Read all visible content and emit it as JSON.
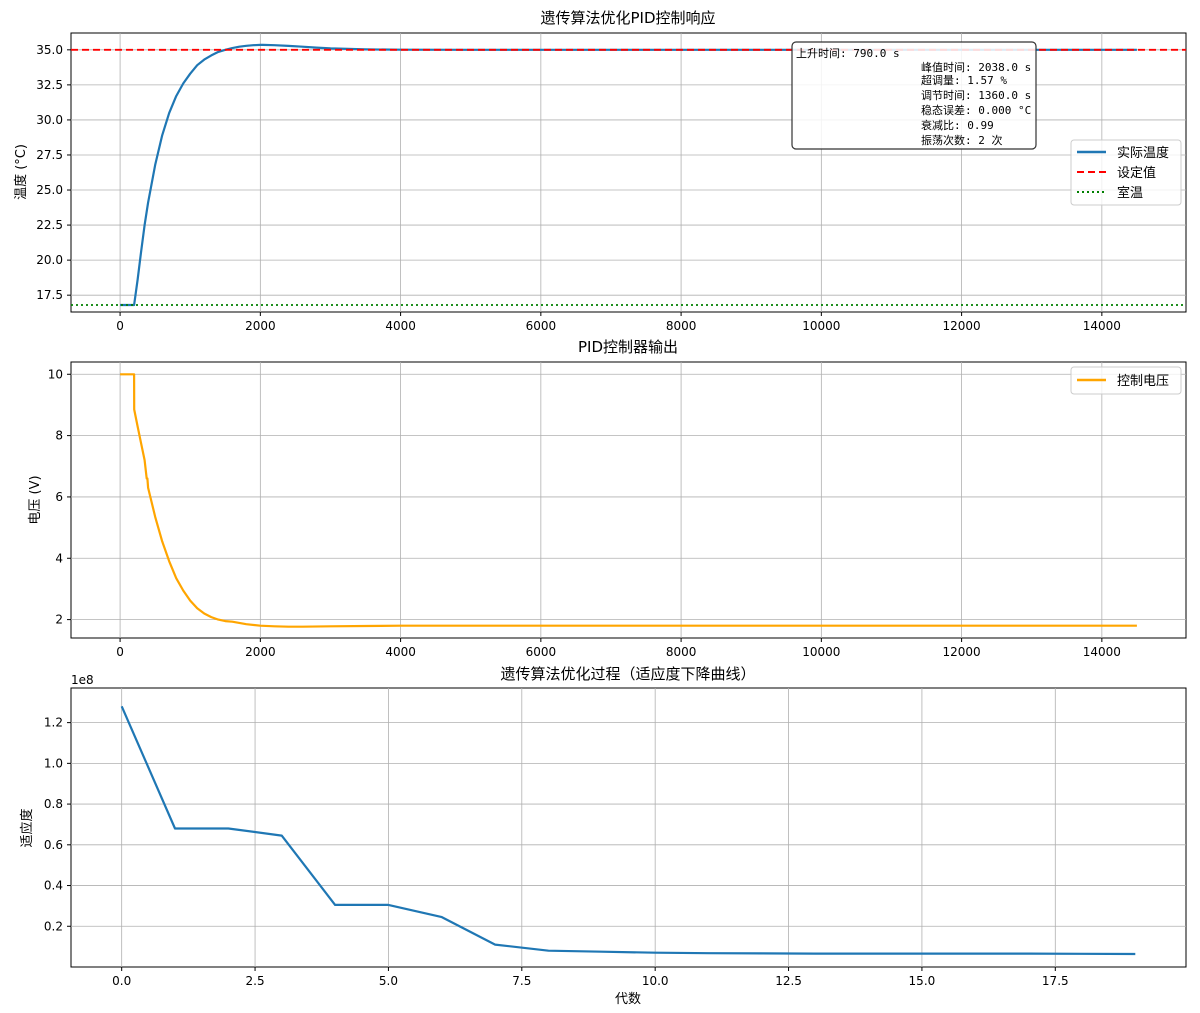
{
  "chart_data": [
    {
      "type": "line",
      "title": "遗传算法优化PID控制响应",
      "xlabel": "",
      "ylabel": "温度 (°C)",
      "xlim": [
        -700,
        15200
      ],
      "ylim": [
        16.3,
        36.2
      ],
      "xticks": [
        0,
        2000,
        4000,
        6000,
        8000,
        10000,
        12000,
        14000
      ],
      "yticks": [
        17.5,
        20.0,
        22.5,
        25.0,
        27.5,
        30.0,
        32.5,
        35.0
      ],
      "grid": true,
      "legend_position": "center-right",
      "series": [
        {
          "name": "实际温度",
          "style": "solid",
          "color": "#1f77b4",
          "x": [
            0,
            100,
            200,
            250,
            300,
            350,
            400,
            500,
            600,
            700,
            800,
            900,
            1000,
            1100,
            1200,
            1300,
            1400,
            1500,
            1600,
            1700,
            1800,
            1900,
            2000,
            2038,
            2200,
            2400,
            2600,
            2800,
            3000,
            3500,
            4000,
            5000,
            6000,
            8000,
            10000,
            12000,
            14500
          ],
          "y": [
            16.8,
            16.8,
            16.8,
            18.6,
            20.6,
            22.5,
            24.1,
            26.8,
            28.9,
            30.5,
            31.7,
            32.6,
            33.3,
            33.9,
            34.3,
            34.6,
            34.85,
            35.0,
            35.12,
            35.22,
            35.29,
            35.33,
            35.35,
            35.35,
            35.33,
            35.28,
            35.22,
            35.16,
            35.1,
            35.03,
            35.01,
            35.0,
            35.0,
            35.0,
            35.0,
            35.0,
            35.0
          ]
        },
        {
          "name": "设定值",
          "style": "dashed",
          "color": "#ff0000",
          "x": [
            -700,
            15200
          ],
          "y": [
            35.0,
            35.0
          ]
        },
        {
          "name": "室温",
          "style": "dotted",
          "color": "#008000",
          "x": [
            -700,
            15200
          ],
          "y": [
            16.8,
            16.8
          ]
        }
      ],
      "stats_lines": [
        "上升时间: 790.0 s",
        "峰值时间: 2038.0 s",
        "超调量: 1.57 %",
        "调节时间: 1360.0 s",
        "稳态误差: 0.000 °C",
        "衰减比: 0.99",
        "振荡次数: 2 次"
      ]
    },
    {
      "type": "line",
      "title": "PID控制器输出",
      "xlabel": "",
      "ylabel": "电压 (V)",
      "xlim": [
        -700,
        15200
      ],
      "ylim": [
        1.4,
        10.4
      ],
      "xticks": [
        0,
        2000,
        4000,
        6000,
        8000,
        10000,
        12000,
        14000
      ],
      "yticks": [
        2,
        4,
        6,
        8,
        10
      ],
      "grid": true,
      "legend_position": "top-right",
      "series": [
        {
          "name": "控制电压",
          "style": "solid",
          "color": "#ffa500",
          "x": [
            0,
            200,
            201,
            250,
            300,
            350,
            380,
            390,
            400,
            500,
            600,
            700,
            800,
            900,
            1000,
            1100,
            1200,
            1300,
            1400,
            1500,
            1600,
            1800,
            2000,
            2200,
            2400,
            2600,
            3000,
            3500,
            4000,
            5000,
            6000,
            8000,
            10000,
            12000,
            14500
          ],
          "y": [
            10.0,
            10.0,
            8.85,
            8.3,
            7.75,
            7.2,
            6.6,
            6.6,
            6.3,
            5.35,
            4.55,
            3.9,
            3.35,
            2.95,
            2.62,
            2.37,
            2.2,
            2.08,
            2.0,
            1.95,
            1.93,
            1.85,
            1.8,
            1.78,
            1.77,
            1.77,
            1.78,
            1.79,
            1.8,
            1.8,
            1.8,
            1.8,
            1.8,
            1.8,
            1.8
          ]
        }
      ]
    },
    {
      "type": "line",
      "title": "遗传算法优化过程（适应度下降曲线）",
      "xlabel": "代数",
      "ylabel": "适应度",
      "offset_label": "1e8",
      "xlim": [
        -0.95,
        19.95
      ],
      "ylim": [
        0.0,
        1.37
      ],
      "xticks": [
        0.0,
        2.5,
        5.0,
        7.5,
        10.0,
        12.5,
        15.0,
        17.5
      ],
      "xtick_labels": [
        "0.0",
        "2.5",
        "5.0",
        "7.5",
        "10.0",
        "12.5",
        "15.0",
        "17.5"
      ],
      "yticks": [
        0.2,
        0.4,
        0.6,
        0.8,
        1.0,
        1.2
      ],
      "ytick_labels": [
        "0.2",
        "0.4",
        "0.6",
        "0.8",
        "1.0",
        "1.2"
      ],
      "grid": true,
      "series": [
        {
          "style": "solid",
          "color": "#1f77b4",
          "x": [
            0,
            1,
            2,
            3,
            4,
            5,
            6,
            7,
            8,
            9,
            10,
            11,
            12,
            13,
            14,
            15,
            16,
            17,
            18,
            19
          ],
          "y": [
            1.28,
            0.68,
            0.68,
            0.645,
            0.305,
            0.305,
            0.245,
            0.11,
            0.08,
            0.075,
            0.07,
            0.068,
            0.067,
            0.066,
            0.066,
            0.066,
            0.066,
            0.066,
            0.065,
            0.064
          ]
        }
      ]
    }
  ]
}
